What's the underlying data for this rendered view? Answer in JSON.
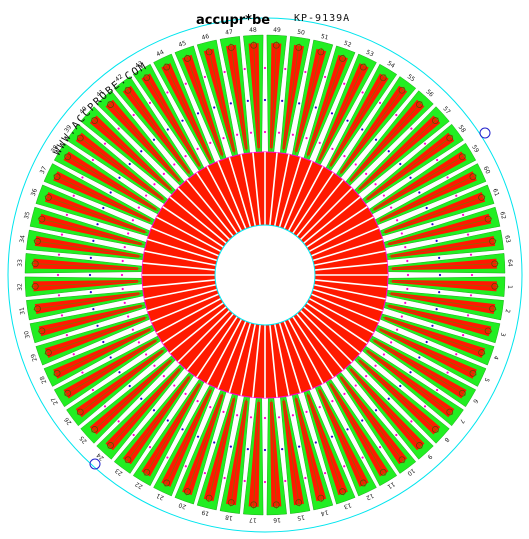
{
  "board": {
    "website": "WWW.ACCPROBE.COM",
    "logo": "accupr*be",
    "part_number": "KP-9139A"
  },
  "colors": {
    "background": "#ffffff",
    "outline": "#00e5ee",
    "trace_fill": "#ff1a00",
    "copper_fill": "#22ee22",
    "trace_line": "#8a6a00",
    "via_magenta": "#ff00cc",
    "via_blue": "#2200cc",
    "silkscreen": "#111111",
    "fiducial": "#2222cc"
  },
  "probe_card": {
    "probe_count": 64
  },
  "pin_labels": [
    "1",
    "2",
    "3",
    "4",
    "5",
    "6",
    "7",
    "8",
    "9",
    "10",
    "11",
    "12",
    "13",
    "14",
    "15",
    "16",
    "17",
    "18",
    "19",
    "20",
    "21",
    "22",
    "23",
    "24",
    "25",
    "26",
    "27",
    "28",
    "29",
    "30",
    "31",
    "32",
    "33",
    "34",
    "35",
    "36",
    "37",
    "38",
    "39",
    "40",
    "41",
    "42",
    "43",
    "44",
    "45",
    "46",
    "47",
    "48",
    "49",
    "50",
    "51",
    "52",
    "53",
    "54",
    "55",
    "56",
    "57",
    "58",
    "59",
    "60",
    "61",
    "62",
    "63",
    "64"
  ]
}
